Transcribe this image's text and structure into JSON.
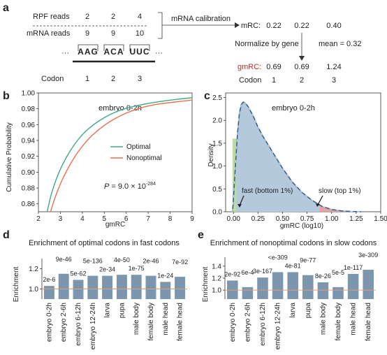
{
  "panel_a": {
    "label": "a",
    "rpf_label": "RPF reads",
    "rpf_values": [
      "2",
      "2",
      "4"
    ],
    "mrna_label": "mRNA reads",
    "mrna_values": [
      "9",
      "9",
      "10"
    ],
    "ellipsis_left": "···",
    "ellipsis_right": "···",
    "codons": [
      "AAG",
      "ACA",
      "UUC"
    ],
    "codon_label": "Codon",
    "codon_numbers": [
      "1",
      "2",
      "3"
    ],
    "calibration_label": "mRNA calibration",
    "mrc_label": "mRC:",
    "mrc_values": [
      "0.22",
      "0.22",
      "0.40"
    ],
    "normalize_label": "Normalize by gene",
    "mean_label": "mean = 0.32",
    "gmrc_label": "gmRC:",
    "gmrc_values": [
      "0.69",
      "0.69",
      "1.24"
    ],
    "codon_label_right": "Codon",
    "codon_numbers_right": [
      "1",
      "2",
      "3"
    ],
    "gmrc_color": "#b5322f"
  },
  "panel_b": {
    "label": "b",
    "title": "embryo 0-2h",
    "xlabel": "gmRC",
    "ylabel": "Cumulative Probability",
    "x_ticks": [
      "2",
      "3",
      "4",
      "5",
      "6",
      "7",
      "8",
      "9"
    ],
    "y_ticks": [
      "0.86",
      "0.88",
      "0.90",
      "0.92",
      "0.94",
      "0.96",
      "0.98",
      "1.00"
    ],
    "legend": [
      "Optimal",
      "Nonoptimal"
    ],
    "p_label": "P",
    "p_value_text": " = 9.0 × 10",
    "p_exponent": "-284",
    "colors": {
      "optimal": "#3fa88c",
      "nonoptimal": "#e8704e"
    }
  },
  "panel_c": {
    "label": "c",
    "title": "embryo 0-2h",
    "xlabel": "gmRC (log10)",
    "ylabel": "Density",
    "x_ticks": [
      "0.00",
      "0.25",
      "0.50",
      "0.75",
      "1.00",
      "1.25",
      "1.50"
    ],
    "y_ticks": [
      "0.0",
      "0.5",
      "1.0",
      "1.5",
      "2.0",
      "2.5"
    ],
    "fast_label": "fast (bottom 1%)",
    "slow_label": "slow (top 1%)",
    "colors": {
      "fill": "#b4c9dc",
      "line": "#2e5b8a",
      "fast": "#b9dca2",
      "slow": "#e8a3a0"
    }
  },
  "chart_data": [
    {
      "type": "line",
      "panel": "b",
      "title": "embryo 0-2h",
      "xlabel": "gmRC",
      "ylabel": "Cumulative Probability",
      "xlim": [
        2,
        9
      ],
      "ylim": [
        0.85,
        1.0
      ],
      "series": [
        {
          "name": "Optimal",
          "x": [
            2.4,
            2.6,
            3.0,
            3.5,
            4.0,
            4.5,
            5.0,
            5.5,
            6.0,
            7.0,
            8.0,
            9.0
          ],
          "y": [
            0.85,
            0.875,
            0.905,
            0.93,
            0.948,
            0.96,
            0.969,
            0.976,
            0.981,
            0.987,
            0.991,
            0.994
          ]
        },
        {
          "name": "Nonoptimal",
          "x": [
            2.55,
            2.8,
            3.2,
            3.7,
            4.2,
            4.7,
            5.2,
            5.7,
            6.2,
            7.0,
            8.0,
            9.0
          ],
          "y": [
            0.85,
            0.872,
            0.898,
            0.922,
            0.94,
            0.953,
            0.963,
            0.971,
            0.977,
            0.984,
            0.988,
            0.991
          ]
        }
      ]
    },
    {
      "type": "area",
      "panel": "c",
      "title": "embryo 0-2h",
      "xlabel": "gmRC (log10)",
      "ylabel": "Density",
      "xlim": [
        -0.08,
        1.5
      ],
      "ylim": [
        0,
        2.6
      ],
      "x": [
        -0.01,
        0.0,
        0.02,
        0.04,
        0.06,
        0.08,
        0.1,
        0.12,
        0.15,
        0.2,
        0.25,
        0.3,
        0.4,
        0.5,
        0.6,
        0.7,
        0.8,
        0.9,
        1.0,
        1.1,
        1.2,
        1.3
      ],
      "y": [
        0.0,
        0.3,
        1.0,
        1.7,
        2.15,
        2.35,
        2.4,
        2.38,
        2.3,
        2.1,
        1.85,
        1.65,
        1.3,
        0.95,
        0.65,
        0.42,
        0.25,
        0.12,
        0.05,
        0.02,
        0.005,
        0.0
      ],
      "fast_cutoff": 0.03,
      "slow_cutoff": 0.88
    },
    {
      "type": "bar",
      "panel": "d",
      "title": "Enrichment of optimal codons in fast codons",
      "ylabel": "Enrichment",
      "ylim": [
        0.9,
        1.3
      ],
      "y_ticks": [
        1.0,
        1.2
      ],
      "categories": [
        "embryo 0-2h",
        "embryo 2-6h",
        "embryo 6-12h",
        "embryo 12-24h",
        "larva",
        "pupa",
        "male body",
        "female body",
        "male head",
        "female head"
      ],
      "values": [
        1.03,
        1.15,
        1.09,
        1.13,
        1.13,
        1.14,
        1.14,
        1.13,
        1.07,
        1.12
      ],
      "annotations": [
        "2e-6",
        "9e-46",
        "5e-62",
        "5e-136",
        "2e-34",
        "4e-50",
        "1e-75",
        "2e-46",
        "1e-24",
        "7e-92"
      ]
    },
    {
      "type": "bar",
      "panel": "e",
      "title": "Enrichment of nonoptimal codons in slow codons",
      "ylabel": "Enrichment",
      "ylim": [
        0.85,
        1.55
      ],
      "y_ticks": [
        1.0,
        1.2,
        1.4
      ],
      "categories": [
        "embryo 0-2h",
        "embryo 2-6h",
        "embryo 6-12h",
        "embryo 12-24h",
        "larva",
        "pupa",
        "male body",
        "female body",
        "male head",
        "female head"
      ],
      "values": [
        1.16,
        1.05,
        1.21,
        1.3,
        1.3,
        1.25,
        1.13,
        1.05,
        1.27,
        1.34
      ],
      "annotations": [
        "2e-92",
        "6e-4",
        "3e-167",
        "<e-309",
        "4e-81",
        "9e-77",
        "8e-26",
        "5e-5",
        "1e-117",
        "3e-309"
      ]
    }
  ],
  "bar_style": {
    "fill": "#7c97ad",
    "refline": "#d9a07a"
  }
}
